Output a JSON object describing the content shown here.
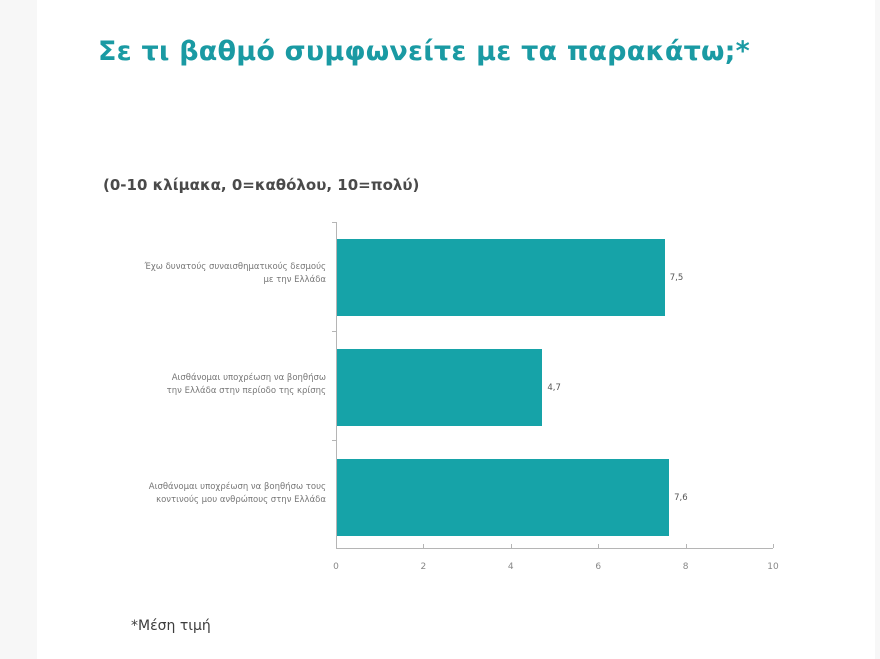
{
  "title": "Σε τι βαθμό συμφωνείτε με τα παρακάτω;*",
  "subtitle": "(0-10 κλίμακα, 0=καθόλου, 10=πολύ)",
  "footnote": "*Μέση τιμή",
  "colors": {
    "accent": "#1a9aa3",
    "bar": "#16a3a8",
    "axis": "#b5b5b5"
  },
  "chart_data": {
    "type": "bar",
    "orientation": "horizontal",
    "title": "Σε τι βαθμό συμφωνείτε με τα παρακάτω;*",
    "subtitle": "(0-10 κλίμακα, 0=καθόλου, 10=πολύ)",
    "categories": [
      "Έχω δυνατούς συναισθηματικούς δεσμούς με την Ελλάδα",
      "Αισθάνομαι υποχρέωση να βοηθήσω την Ελλάδα στην περίοδο της κρίσης",
      "Αισθάνομαι υποχρέωση να βοηθήσω τους κοντινούς μου ανθρώπους στην Ελλάδα"
    ],
    "category_lines": [
      [
        "Έχω δυνατούς συναισθηματικούς δεσμούς",
        "με την Ελλάδα"
      ],
      [
        "Αισθάνομαι υποχρέωση να βοηθήσω",
        "την Ελλάδα στην περίοδο της κρίσης"
      ],
      [
        "Αισθάνομαι υποχρέωση να βοηθήσω τους",
        "κοντινούς μου ανθρώπους στην Ελλάδα"
      ]
    ],
    "values": [
      7.5,
      4.7,
      7.6
    ],
    "value_labels": [
      "7,5",
      "4,7",
      "7,6"
    ],
    "xlabel": "",
    "ylabel": "",
    "xlim": [
      0,
      10
    ],
    "xticks": [
      0,
      2,
      4,
      6,
      8,
      10
    ],
    "xtick_labels": [
      "0",
      "2",
      "4",
      "6",
      "8",
      "10"
    ],
    "grid": false,
    "legend": null,
    "note": "*Μέση τιμή"
  }
}
